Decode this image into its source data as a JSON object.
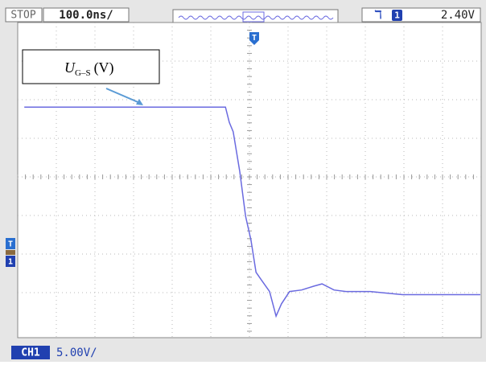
{
  "status": {
    "run_state": "STOP",
    "timebase": "100.0ns/",
    "trigger_channel": "1",
    "trigger_level": "2.40V"
  },
  "markers": {
    "trigger": "T",
    "channel_ground": "1"
  },
  "footer": {
    "channel": "CH1",
    "scale": "5.00V/"
  },
  "chart_data": {
    "type": "line",
    "annotation": {
      "symbol": "U",
      "subscript": "G–S",
      "unit": "(V)"
    },
    "x": [
      -583,
      -62,
      -52,
      -42,
      -25,
      -10,
      4,
      17,
      31,
      52,
      69,
      83,
      104,
      135,
      167,
      188,
      219,
      250,
      313,
      396,
      500,
      598
    ],
    "values": [
      20,
      20,
      18,
      16.8,
      11.6,
      5.8,
      2.7,
      -1.5,
      -2.5,
      -4,
      -7.2,
      -5.6,
      -4,
      -3.8,
      -3.3,
      -3,
      -3.8,
      -4,
      -4,
      -4.4,
      -4.4,
      -4.4
    ],
    "color": "#6a6ae0",
    "xlim": [
      -600,
      600
    ],
    "ylim": [
      -10,
      31
    ]
  }
}
